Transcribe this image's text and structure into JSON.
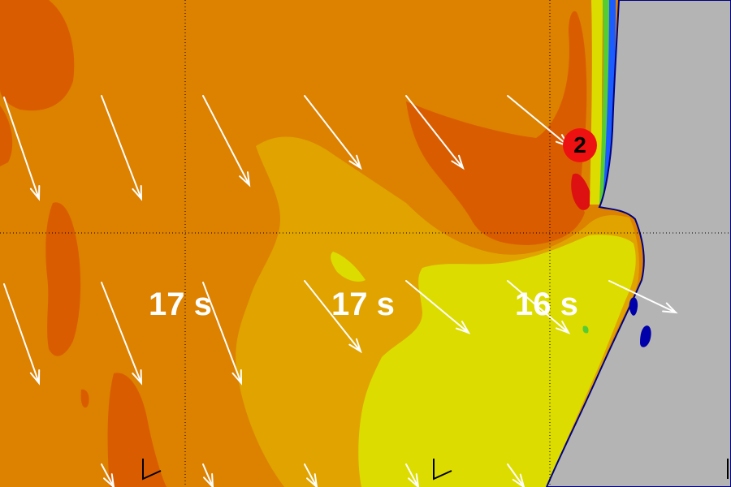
{
  "colors": {
    "orange": "#dd8100",
    "dark_orange": "#d95d00",
    "amber": "#e0a300",
    "yellow": "#dcdc00",
    "red": "#dd1111",
    "land": "#b4b4b4",
    "arrow": "#ffffff"
  },
  "labels": {
    "period_west": "17 s",
    "period_center": "17 s",
    "period_east": "16 s"
  },
  "marker": {
    "number": "2"
  },
  "arrows": {
    "direction": "north-west to south-east",
    "color": "#ffffff"
  },
  "grid": {
    "style": "dotted",
    "color": "#000000"
  }
}
